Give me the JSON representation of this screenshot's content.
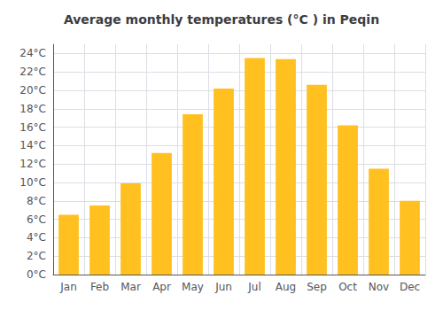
{
  "chart_data": {
    "type": "bar",
    "title": "Average monthly temperatures (°C ) in Peqin",
    "categories": [
      "Jan",
      "Feb",
      "Mar",
      "Apr",
      "May",
      "Jun",
      "Jul",
      "Aug",
      "Sep",
      "Oct",
      "Nov",
      "Dec"
    ],
    "values": [
      6.5,
      7.5,
      9.9,
      13.2,
      17.4,
      20.2,
      23.5,
      23.4,
      20.6,
      16.2,
      11.5,
      8.0
    ],
    "color": "#FFC020",
    "ylim": [
      0,
      25
    ],
    "yticks": [
      {
        "value": 0,
        "label": "0°C"
      },
      {
        "value": 2,
        "label": "2°C"
      },
      {
        "value": 4,
        "label": "4°C"
      },
      {
        "value": 6,
        "label": "6°C"
      },
      {
        "value": 8,
        "label": "8°C"
      },
      {
        "value": 10,
        "label": "10°C"
      },
      {
        "value": 12,
        "label": "12°C"
      },
      {
        "value": 14,
        "label": "14°C"
      },
      {
        "value": 16,
        "label": "16°C"
      },
      {
        "value": 18,
        "label": "18°C"
      },
      {
        "value": 20,
        "label": "20°C"
      },
      {
        "value": 22,
        "label": "22°C"
      },
      {
        "value": 24,
        "label": "24°C"
      }
    ],
    "grid": true
  }
}
